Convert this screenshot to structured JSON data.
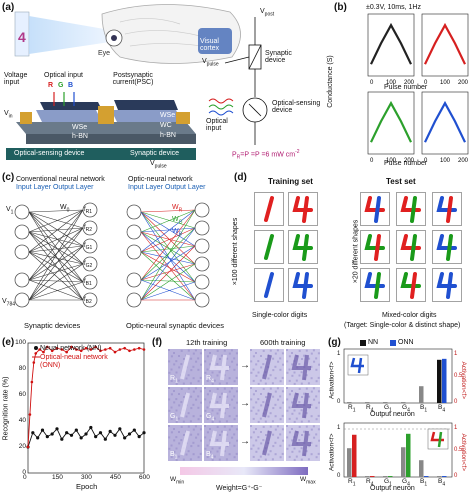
{
  "panel_a": {
    "label": "(a)",
    "eye_label": "Eye",
    "cortex_label": "Visual cortex",
    "voltage_input": "Voltage input",
    "optical_input": "Optical input",
    "rgb": [
      "R",
      "G",
      "B"
    ],
    "psc_label": "Postsynaptic current(PSC)",
    "vin": "V",
    "vin_sub": "in",
    "layers_left": [
      "WSe",
      "h-BN"
    ],
    "layers_right": [
      "WSe",
      "WC",
      "h-BN"
    ],
    "optical_device": "Optical-sensing device",
    "synaptic_device_bar": "Synaptic device",
    "vpulse_bottom": "V",
    "vpulse_bottom_sub": "pulse",
    "circuit": {
      "vpost": "V",
      "vpost_sub": "post",
      "vpulse": "V",
      "vpulse_sub": "pulse",
      "synaptic_device": "Synaptic device",
      "optical_input": "Optical input",
      "optical_sensing_device": "Optical-sensing device",
      "power": "P",
      "power_full": "=P =P =6 mW cm",
      "power_subs": [
        "R",
        "G",
        "B"
      ]
    }
  },
  "panel_b": {
    "label": "(b)",
    "header": "±0.3V, 10ms, 1Hz",
    "ylabel": "Conductance (S)",
    "xlabel": "Pulse number",
    "colors": [
      "#222222",
      "#d62020",
      "#2ca02c",
      "#2050d0"
    ]
  },
  "panel_c": {
    "label": "(c)",
    "title_left": "Conventional neural network",
    "sub_left": "Input Layer Output Layer",
    "title_right": "Optic-neural network",
    "sub_right": "Input Layer Output Layer",
    "footer_left": "Synaptic devices",
    "footer_right": "Optic-neural synaptic devices",
    "v1": "V",
    "v1_sub": "1",
    "v784": "V",
    "v784_sub": "784",
    "w0": "W",
    "w0_sub": "0",
    "wR": "W",
    "wR_sub": "R",
    "wG": "W",
    "wG_sub": "G",
    "wB": "W",
    "wB_sub": "B",
    "outputs_left": [
      "f",
      "f",
      "f",
      "f",
      "f",
      "f"
    ],
    "outputs_left_sub": [
      "R1",
      "R2",
      "G1",
      "G2",
      "B1",
      "B2"
    ]
  },
  "panel_d": {
    "label": "(d)",
    "training_title": "Training set",
    "test_title": "Test set",
    "left_axis": "×100 different shapes",
    "right_axis": "×20 different shapes",
    "caption_left": "Single-color digits",
    "caption_right": "Mixed-color digits",
    "caption_right2": "(Target: Single-color & distinct shape)"
  },
  "panel_e": {
    "label": "(e)",
    "ylabel": "Recognition rate (%)",
    "xlabel": "Epoch",
    "legend_nn": "Neual network (NN)",
    "legend_onn_1": "Optical-neual network",
    "legend_onn_2": "(ONN)",
    "xticks": [
      "0",
      "150",
      "300",
      "450",
      "600"
    ],
    "yticks": [
      "0",
      "20",
      "40",
      "60",
      "80",
      "100"
    ],
    "colors": {
      "nn": "#111111",
      "onn": "#d01010"
    }
  },
  "panel_f": {
    "label": "(f)",
    "col1": "12th training",
    "col2": "600th training",
    "rows": [
      {
        "a": "R",
        "a_sub": "1",
        "b": "R",
        "b_sub": "4"
      },
      {
        "a": "G",
        "a_sub": "1",
        "b": "G",
        "b_sub": "4"
      },
      {
        "a": "B",
        "a_sub": "1",
        "b": "B",
        "b_sub": "4"
      }
    ],
    "wmin": "W",
    "wmin_sub": "min",
    "wmax": "W",
    "wmax_sub": "max",
    "weight_label": "Weight=G⁺-G⁻"
  },
  "panel_g": {
    "label": "(g)",
    "legend_nn": "NN",
    "legend_onn": "ONN",
    "ylabel_left": "Activation<f>",
    "ylabel_right": "Activation<f>",
    "xlabel": "Output neuron",
    "categories": [
      "R",
      "R",
      "G",
      "G",
      "B",
      "B"
    ],
    "category_subs": [
      "1",
      "4",
      "1",
      "4",
      "1",
      "4"
    ],
    "yticks_left": [
      "0",
      "1"
    ],
    "yticks_right": [
      "0",
      "0.5",
      "1"
    ]
  },
  "chart_data": [
    {
      "type": "line",
      "panel": "b",
      "title": "±0.3V, 10ms, 1Hz",
      "xlabel": "Pulse number",
      "ylabel": "Conductance (S)",
      "x_range": [
        0,
        200
      ],
      "yscale": "log",
      "series": [
        {
          "color": "#222222",
          "x": [
            0,
            50,
            100,
            150,
            200
          ],
          "y": [
            0.15,
            0.55,
            0.9,
            0.55,
            0.15
          ]
        },
        {
          "color": "#d62020",
          "x": [
            0,
            50,
            100,
            150,
            200
          ],
          "y": [
            0.15,
            0.55,
            0.9,
            0.55,
            0.15
          ]
        },
        {
          "color": "#2ca02c",
          "x": [
            0,
            50,
            100,
            150,
            200
          ],
          "y": [
            0.15,
            0.55,
            0.9,
            0.55,
            0.15
          ]
        },
        {
          "color": "#2050d0",
          "x": [
            0,
            50,
            100,
            150,
            200
          ],
          "y": [
            0.15,
            0.55,
            0.9,
            0.55,
            0.15
          ]
        }
      ]
    },
    {
      "type": "line",
      "panel": "e",
      "xlabel": "Epoch",
      "ylabel": "Recognition rate (%)",
      "xlim": [
        0,
        600
      ],
      "ylim": [
        0,
        100
      ],
      "series": [
        {
          "name": "Neual network (NN)",
          "x": [
            0,
            25,
            50,
            75,
            100,
            125,
            150,
            175,
            200,
            225,
            250,
            275,
            300,
            325,
            350,
            375,
            400,
            425,
            450,
            475,
            500,
            525,
            550,
            575,
            600
          ],
          "y": [
            20,
            31,
            27,
            33,
            28,
            30,
            34,
            26,
            31,
            29,
            33,
            27,
            30,
            35,
            28,
            31,
            26,
            32,
            29,
            34,
            27,
            30,
            33,
            28,
            31
          ]
        },
        {
          "name": "Optical-neual network (ONN)",
          "x": [
            0,
            10,
            20,
            30,
            40,
            60,
            80,
            100,
            125,
            150,
            175,
            200,
            225,
            250,
            275,
            300,
            325,
            350,
            375,
            400,
            425,
            450,
            475,
            500,
            525,
            550,
            575,
            600
          ],
          "y": [
            20,
            45,
            70,
            85,
            92,
            95,
            93,
            97,
            94,
            96,
            95,
            93,
            97,
            95,
            94,
            96,
            95,
            97,
            94,
            95,
            96,
            93,
            95,
            96,
            94,
            95,
            96,
            95
          ]
        }
      ]
    },
    {
      "type": "bar",
      "panel": "g-top",
      "xlabel": "Output neuron",
      "categories": [
        "R1",
        "R4",
        "G1",
        "G4",
        "B1",
        "B4"
      ],
      "series": [
        {
          "name": "NN",
          "values": [
            0.02,
            0.02,
            0.02,
            0.02,
            0.35,
            0.9
          ]
        },
        {
          "name": "ONN",
          "values": [
            0.0,
            0.0,
            0.0,
            0.0,
            0.0,
            0.92
          ]
        }
      ],
      "ylim": [
        0,
        1
      ]
    },
    {
      "type": "bar",
      "panel": "g-bottom",
      "xlabel": "Output neuron",
      "categories": [
        "R1",
        "R4",
        "G1",
        "G4",
        "B1",
        "B4"
      ],
      "series": [
        {
          "name": "NN",
          "values": [
            0.6,
            0.02,
            0.02,
            0.62,
            0.35,
            0.02
          ]
        },
        {
          "name": "ONN",
          "values": [
            0.88,
            0.02,
            0.02,
            0.9,
            0.02,
            0.02
          ]
        }
      ],
      "ylim": [
        0,
        1
      ]
    }
  ]
}
